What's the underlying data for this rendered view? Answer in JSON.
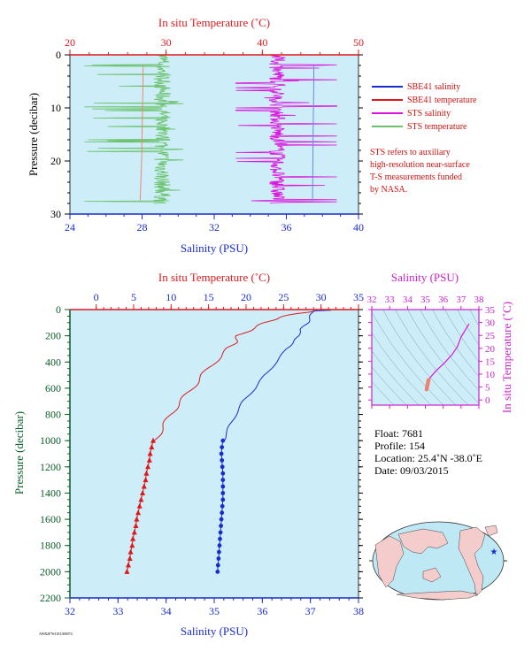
{
  "colors": {
    "plot_bg": "#cdeef8",
    "temperature": "#e0181c",
    "salinity": "#1a2ccf",
    "sts_salinity": "#dd12dd",
    "sts_temperature": "#6cc26c",
    "depth_axis": "#0b5e2a",
    "ts_axis": "#cc22cc"
  },
  "chart_data": [
    {
      "id": "near_surface_profile",
      "type": "line",
      "top_axis_title": "In situ Temperature (˚C)",
      "bottom_axis_title": "Salinity (PSU)",
      "y_axis_title": "Pressure (decibar)",
      "temperature_ticks": [
        "20",
        "30",
        "40",
        "50"
      ],
      "salinity_ticks": [
        "24",
        "28",
        "32",
        "36",
        "40"
      ],
      "pressure_ticks": [
        "0",
        "10",
        "20",
        "30"
      ],
      "xlim_temperature": [
        20,
        50
      ],
      "xlim_salinity": [
        24,
        40
      ],
      "ylim_pressure": [
        0,
        30
      ],
      "pressure_reversed": true,
      "legend": {
        "position": "right",
        "entries": [
          {
            "label": "SBE41 salinity",
            "color": "#1a2ccf"
          },
          {
            "label": "SBE41 temperature",
            "color": "#e0181c"
          },
          {
            "label": "STS salinity",
            "color": "#dd12dd"
          },
          {
            "label": "STS temperature",
            "color": "#6cc26c"
          }
        ]
      },
      "note_lines": [
        "STS refers to auxiliary",
        "high-resolution near-surface",
        "T-S measurements funded",
        "by NASA."
      ],
      "series": [
        {
          "name": "SBE41 salinity",
          "axis": "salinity",
          "pressure": [
            2,
            5,
            10,
            15,
            20,
            25,
            27.5
          ],
          "values": [
            37.52,
            37.52,
            37.5,
            37.48,
            37.47,
            37.46,
            37.45
          ]
        },
        {
          "name": "SBE41 temperature",
          "axis": "temperature",
          "pressure": [
            2,
            5,
            10,
            15,
            20,
            25,
            27.5
          ],
          "values": [
            27.6,
            27.6,
            27.55,
            27.5,
            27.45,
            27.35,
            27.3
          ]
        },
        {
          "name": "STS salinity",
          "axis": "salinity",
          "pressure_range": [
            0,
            28
          ],
          "mean": 35.5,
          "spike_extent": [
            33.2,
            38.8
          ]
        },
        {
          "name": "STS temperature",
          "axis": "temperature",
          "pressure_range": [
            0,
            28
          ],
          "mean": 29.6,
          "spike_extent": [
            21.5,
            31.8
          ]
        }
      ]
    },
    {
      "id": "full_profile",
      "type": "line",
      "top_axis_title": "In situ Temperature (˚C)",
      "bottom_axis_title": "Salinity (PSU)",
      "y_axis_title": "Pressure (decibar)",
      "temperature_ticks": [
        "0",
        "5",
        "10",
        "15",
        "20",
        "25",
        "30",
        "35"
      ],
      "salinity_ticks": [
        "32",
        "33",
        "34",
        "35",
        "36",
        "37",
        "38"
      ],
      "pressure_ticks": [
        "0",
        "200",
        "400",
        "600",
        "800",
        "1000",
        "1200",
        "1400",
        "1600",
        "1800",
        "2000",
        "2200"
      ],
      "xlim_temperature": [
        -3.5,
        35
      ],
      "xlim_salinity": [
        32,
        38
      ],
      "ylim_pressure": [
        0,
        2200
      ],
      "pressure_reversed": true,
      "series": [
        {
          "name": "Temperature",
          "axis": "temperature",
          "pressure": [
            5,
            30,
            60,
            100,
            150,
            200,
            250,
            300,
            400,
            500,
            600,
            700,
            800,
            900,
            1000
          ],
          "values": [
            29.5,
            27.0,
            24.3,
            22.6,
            20.7,
            19.0,
            18.5,
            17.6,
            15.8,
            14.2,
            12.8,
            11.3,
            9.9,
            8.9,
            7.8
          ]
        },
        {
          "name": "Temperature",
          "axis": "temperature",
          "marker": "triangle",
          "pressure": [
            1000,
            1050,
            1100,
            1150,
            1200,
            1250,
            1300,
            1350,
            1400,
            1450,
            1500,
            1550,
            1600,
            1650,
            1700,
            1750,
            1800,
            1850,
            1900,
            1950,
            2000
          ],
          "values": [
            7.6,
            7.4,
            7.2,
            7.1,
            6.9,
            6.7,
            6.6,
            6.4,
            6.2,
            6.0,
            5.8,
            5.6,
            5.4,
            5.3,
            5.1,
            4.9,
            4.8,
            4.6,
            4.5,
            4.3,
            4.1
          ]
        },
        {
          "name": "Salinity",
          "axis": "salinity",
          "pressure": [
            5,
            10,
            50,
            100,
            150,
            200,
            250,
            300,
            400,
            500,
            600,
            700,
            800,
            900,
            1000
          ],
          "values": [
            37.45,
            37.05,
            37.0,
            36.95,
            36.8,
            36.75,
            36.65,
            36.5,
            36.3,
            36.05,
            35.85,
            35.6,
            35.45,
            35.3,
            35.2
          ]
        },
        {
          "name": "Salinity",
          "axis": "salinity",
          "marker": "circle",
          "pressure": [
            1000,
            1050,
            1100,
            1150,
            1200,
            1250,
            1300,
            1350,
            1400,
            1450,
            1500,
            1550,
            1600,
            1650,
            1700,
            1750,
            1800,
            1850,
            1900,
            1950,
            2000
          ],
          "values": [
            35.18,
            35.16,
            35.15,
            35.16,
            35.17,
            35.18,
            35.18,
            35.18,
            35.18,
            35.18,
            35.17,
            35.16,
            35.15,
            35.14,
            35.13,
            35.12,
            35.11,
            35.1,
            35.09,
            35.08,
            35.07
          ]
        }
      ]
    },
    {
      "id": "ts_diagram",
      "type": "line",
      "top_axis_title": "Salinity (PSU)",
      "right_axis_title": "In situ Temperature (˚C)",
      "salinity_ticks": [
        "32",
        "33",
        "34",
        "35",
        "36",
        "37",
        "38"
      ],
      "temperature_ticks": [
        "0",
        "5",
        "10",
        "15",
        "20",
        "25",
        "30",
        "35"
      ],
      "xlim": [
        32,
        38
      ],
      "ylim": [
        -2,
        35
      ],
      "series": [
        {
          "name": "T-S",
          "salinity": [
            37.45,
            37.0,
            36.8,
            36.5,
            36.05,
            35.6,
            35.3,
            35.2,
            35.15,
            35.1,
            35.07
          ],
          "temperature": [
            29.5,
            24.3,
            20.7,
            17.6,
            14.2,
            11.3,
            8.9,
            7.8,
            6.6,
            5.2,
            4.1
          ]
        }
      ]
    }
  ],
  "float_info": {
    "float": "Float:  7681",
    "profile": "Profile:  154",
    "location": "Location:  25.4˚N  -38.0˚E",
    "date": "Date:  09/03/2015"
  },
  "footer_code": "AWR2F7631E1000074"
}
